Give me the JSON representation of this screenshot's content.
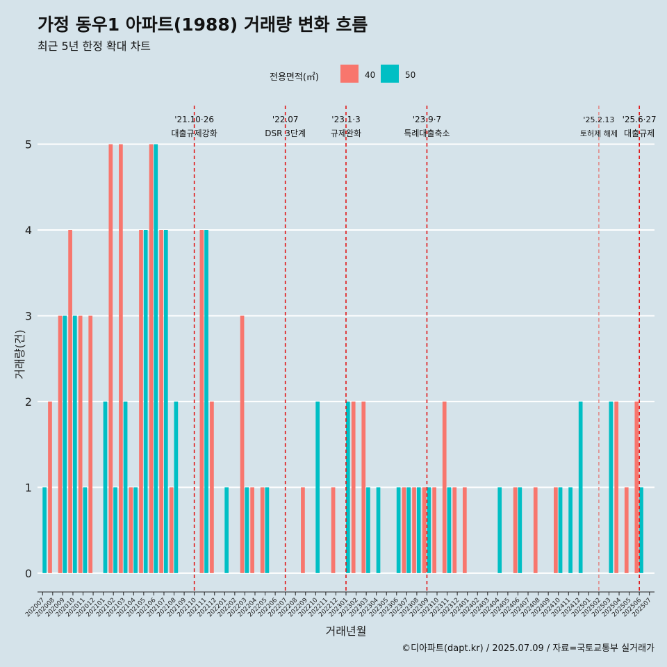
{
  "chart_data": {
    "type": "bar",
    "title": "가정 동우1 아파트(1988) 거래량 변화 흐름",
    "subtitle": "최근 5년 한정 확대 차트",
    "xlabel": "거래년월",
    "ylabel": "거래량(건)",
    "ylim": [
      -0.22,
      5.45
    ],
    "yticks": [
      0,
      1,
      2,
      3,
      4,
      5
    ],
    "legend": {
      "title": "전용면적(㎡)",
      "position": "top"
    },
    "categories": [
      "202007",
      "202008",
      "202009",
      "202010",
      "202011",
      "202012",
      "202101",
      "202102",
      "202103",
      "202104",
      "202105",
      "202106",
      "202107",
      "202108",
      "202109",
      "202110",
      "202111",
      "202112",
      "202201",
      "202202",
      "202203",
      "202204",
      "202205",
      "202206",
      "202207",
      "202208",
      "202209",
      "202210",
      "202211",
      "202212",
      "202301",
      "202302",
      "202303",
      "202304",
      "202305",
      "202306",
      "202307",
      "202308",
      "202309",
      "202310",
      "202311",
      "202312",
      "202401",
      "202402",
      "202403",
      "202404",
      "202405",
      "202406",
      "202407",
      "202408",
      "202409",
      "202410",
      "202411",
      "202412",
      "202501",
      "202502",
      "202503",
      "202504",
      "202505",
      "202506",
      "202507"
    ],
    "series": [
      {
        "name": "40",
        "color": "#f8766d",
        "values": [
          0,
          2,
          3,
          4,
          3,
          3,
          0,
          5,
          5,
          1,
          4,
          5,
          4,
          1,
          0,
          0,
          4,
          2,
          0,
          0,
          3,
          1,
          1,
          0,
          0,
          0,
          1,
          0,
          0,
          1,
          0,
          2,
          2,
          0,
          0,
          0,
          1,
          1,
          1,
          1,
          2,
          1,
          1,
          0,
          0,
          0,
          0,
          1,
          0,
          1,
          0,
          1,
          0,
          0,
          0,
          0,
          0,
          2,
          1,
          2,
          0
        ]
      },
      {
        "name": "50",
        "color": "#00bfc4",
        "values": [
          1,
          0,
          3,
          3,
          1,
          0,
          2,
          1,
          2,
          1,
          4,
          5,
          4,
          2,
          0,
          0,
          4,
          0,
          1,
          0,
          1,
          0,
          1,
          0,
          0,
          0,
          0,
          2,
          0,
          0,
          2,
          0,
          1,
          1,
          0,
          1,
          1,
          1,
          1,
          0,
          1,
          0,
          0,
          0,
          0,
          1,
          0,
          1,
          0,
          0,
          0,
          1,
          1,
          2,
          0,
          0,
          2,
          0,
          0,
          1,
          0
        ]
      }
    ],
    "event_lines": [
      {
        "category": "202110",
        "date": "'21.10·26",
        "label": "대출규제강화",
        "style": "dashed"
      },
      {
        "category": "202207",
        "date": "'22.07",
        "label": "DSR 3단계",
        "style": "dashed"
      },
      {
        "category": "202301",
        "date": "'23.1·3",
        "label": "규제완화",
        "style": "dashed"
      },
      {
        "category": "202309",
        "date": "'23.9·7",
        "label": "특례대출축소",
        "style": "dashed"
      },
      {
        "category": "202502",
        "date": "'25.2.13",
        "label": "토허제 해제",
        "style": "thin-dashed"
      },
      {
        "category": "202506",
        "date": "'25.6·27",
        "label": "대출규제",
        "style": "dashed"
      }
    ]
  },
  "caption": "©디아파트(dapt.kr) / 2025.07.09 / 자료=국토교통부 실거래가"
}
